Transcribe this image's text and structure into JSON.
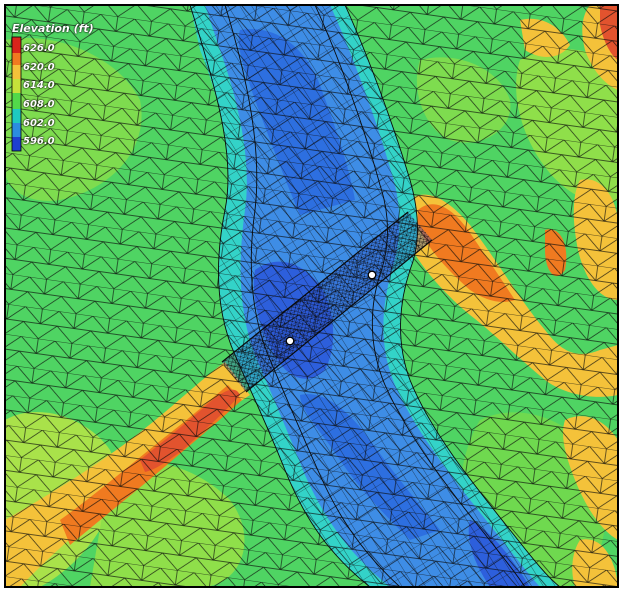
{
  "legend": {
    "title": "Elevation (ft)",
    "labels": [
      "626.0",
      "620.0",
      "614.0",
      "608.0",
      "602.0",
      "596.0"
    ],
    "ramp_colors": [
      "#d9241b",
      "#f07a20",
      "#f4c23a",
      "#c6e23a",
      "#52d94a",
      "#1ec9c0",
      "#2b8de0",
      "#1e3fd0"
    ]
  },
  "map": {
    "colors": {
      "land": "#4fd463",
      "land_light": "#8fdf4a",
      "ridge": "#f2a040",
      "ridge_high": "#e2532e",
      "bank": "#33d3c8",
      "channel": "#3e8de6",
      "channel_deep": "#2d5fdc",
      "mesh_line": "#0a0a0a",
      "marker": "#ffffff"
    },
    "markers": [
      {
        "name": "bridge-pier-1"
      },
      {
        "name": "bridge-pier-2"
      }
    ]
  }
}
